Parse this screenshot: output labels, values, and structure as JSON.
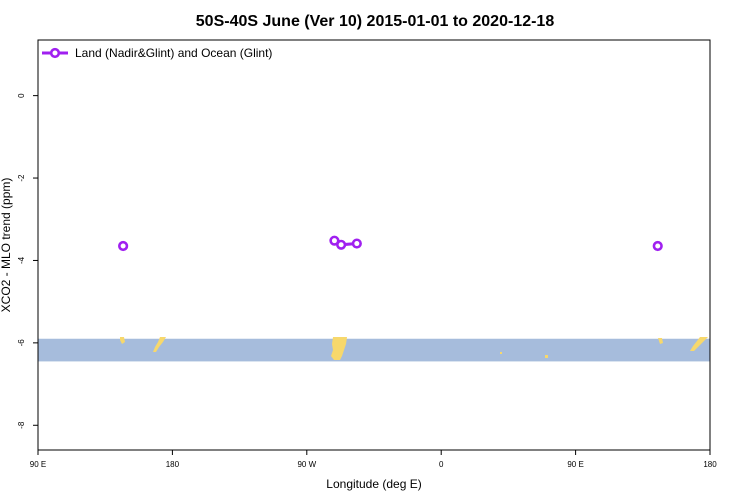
{
  "chart_data": {
    "type": "line",
    "title": "50S-40S June (Ver 10)   2015-01-01 to 2020-12-18",
    "xlabel": "Longitude (deg E)",
    "ylabel": "XCO2 - MLO trend (ppm)",
    "x_ticks": [
      {
        "value": 90,
        "label": "90 E"
      },
      {
        "value": 180,
        "label": "180"
      },
      {
        "value": 270,
        "label": "90 W"
      },
      {
        "value": 360,
        "label": "0"
      },
      {
        "value": 450,
        "label": "90 E"
      },
      {
        "value": 540,
        "label": "180"
      }
    ],
    "y_ticks": [
      {
        "value": 0,
        "label": "0"
      },
      {
        "value": -2,
        "label": "-2"
      },
      {
        "value": -4,
        "label": "-4"
      },
      {
        "value": -6,
        "label": "-6"
      },
      {
        "value": -8,
        "label": "-8"
      }
    ],
    "xlim": [
      90,
      540
    ],
    "ylim": [
      -8.6,
      1.35
    ],
    "grid": false,
    "legend_position": "top-left",
    "series": [
      {
        "name": "Land (Nadir&Glint) and Ocean (Glint)",
        "color": "#a020f0",
        "segments": [
          [
            [
              147,
              -3.65
            ]
          ],
          [
            [
              288.5,
              -3.52
            ],
            [
              293,
              -3.62
            ],
            [
              303.5,
              -3.59
            ]
          ],
          [
            [
              505,
              -3.65
            ]
          ]
        ]
      }
    ],
    "map_band": {
      "ymin": -6.45,
      "ymax": -5.9,
      "ocean_color": "#a6bcdc",
      "land_color": "#f7d86c"
    }
  }
}
